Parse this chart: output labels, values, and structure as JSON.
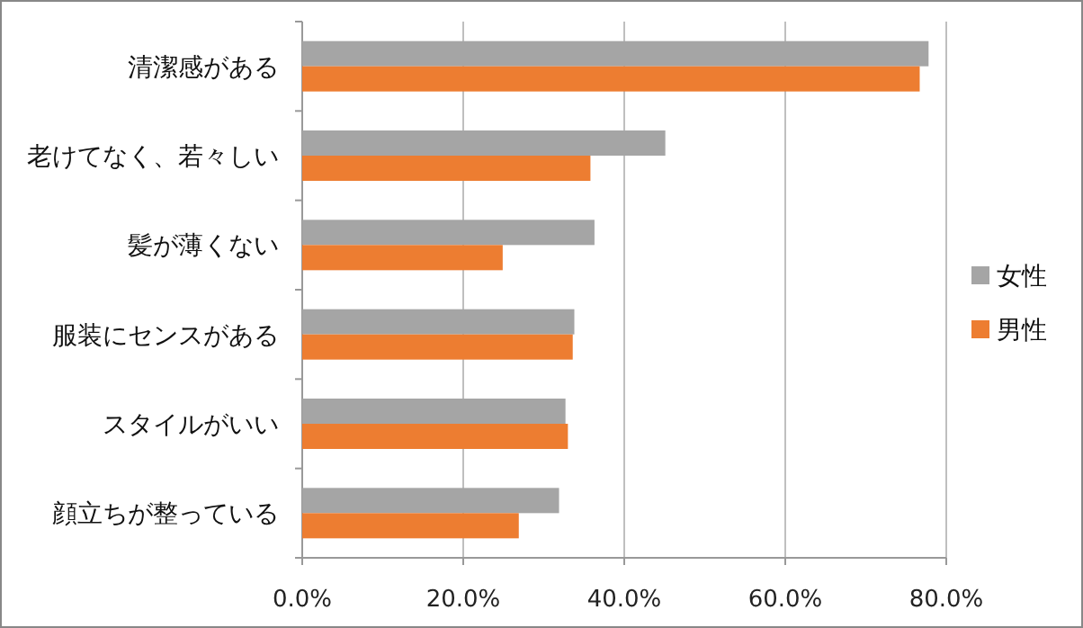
{
  "chart_data": {
    "type": "bar",
    "orientation": "horizontal",
    "categories": [
      "清潔感がある",
      "老けてなく、若々しい",
      "髪が薄くない",
      "服装にセンスがある",
      "スタイルがいい",
      "顔立ちが整っている"
    ],
    "series": [
      {
        "name": "女性",
        "color": "#a5a5a5",
        "values": [
          77.8,
          45.1,
          36.3,
          33.8,
          32.7,
          31.9
        ]
      },
      {
        "name": "男性",
        "color": "#ed7d31",
        "values": [
          76.7,
          35.8,
          24.9,
          33.6,
          33.0,
          26.9
        ]
      }
    ],
    "xlim": [
      0,
      80
    ],
    "xticks": [
      {
        "value": 0,
        "label": "0.0%"
      },
      {
        "value": 20,
        "label": "20.0%"
      },
      {
        "value": 40,
        "label": "40.0%"
      },
      {
        "value": 60,
        "label": "60.0%"
      },
      {
        "value": 80,
        "label": "80.0%"
      }
    ],
    "grid": "x",
    "legend": "right"
  }
}
